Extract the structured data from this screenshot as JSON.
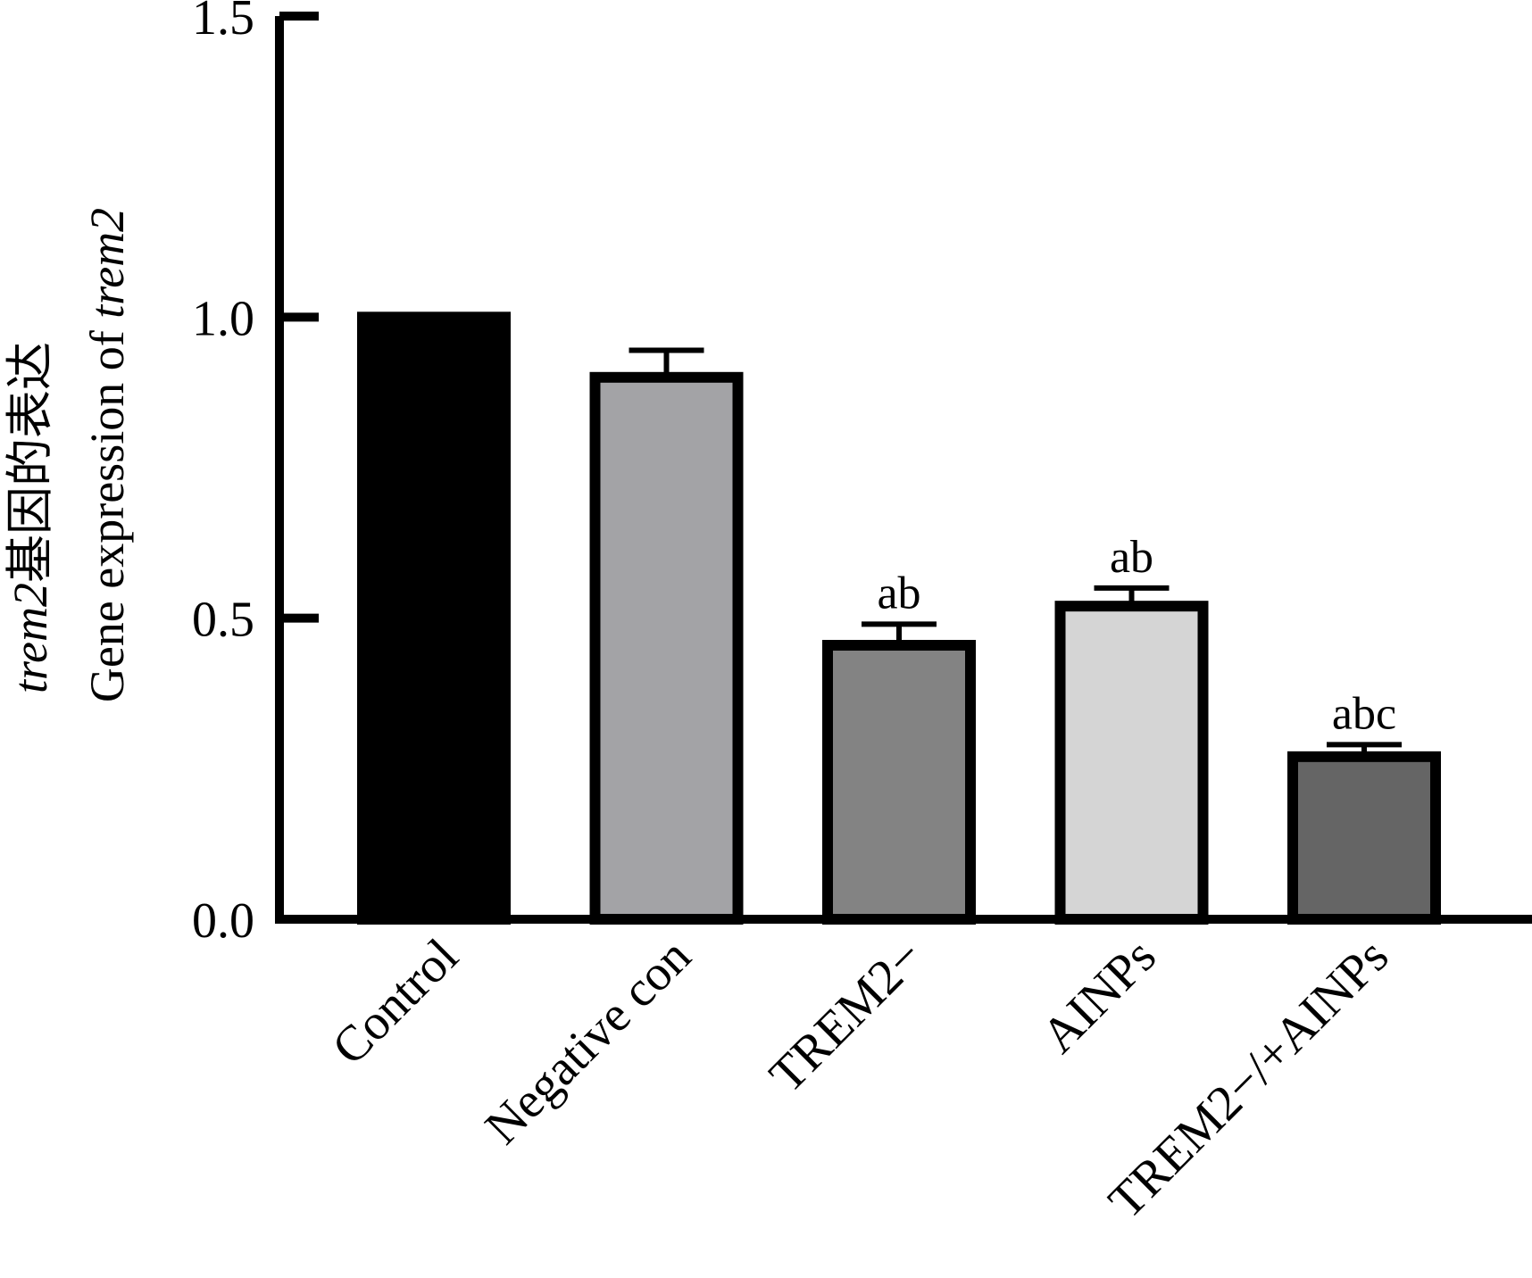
{
  "chart_data": {
    "type": "bar",
    "categories": [
      "Control",
      "Negative con",
      "TREM2−",
      "AINPs",
      "TREM2−/+AINPs"
    ],
    "values": [
      1.0,
      0.9,
      0.455,
      0.52,
      0.27
    ],
    "errors": [
      0.0,
      0.045,
      0.035,
      0.03,
      0.02
    ],
    "significance": [
      "",
      "",
      "ab",
      "ab",
      "abc"
    ],
    "bar_colors": [
      "#000000",
      "#a3a3a6",
      "#838383",
      "#d5d5d5",
      "#656565"
    ],
    "ylim": [
      0,
      1.5
    ],
    "yticks": [
      "0.0",
      "0.5",
      "1.0",
      "1.5"
    ],
    "ytick_values": [
      0,
      0.5,
      1.0,
      1.5
    ],
    "ylabel_line1": {
      "italic": "trem2",
      "rest": "基因的表达"
    },
    "ylabel_line2": {
      "rest": "Gene expression of ",
      "italic": "trem2"
    },
    "xlabel": "",
    "title": "",
    "grid": false
  }
}
